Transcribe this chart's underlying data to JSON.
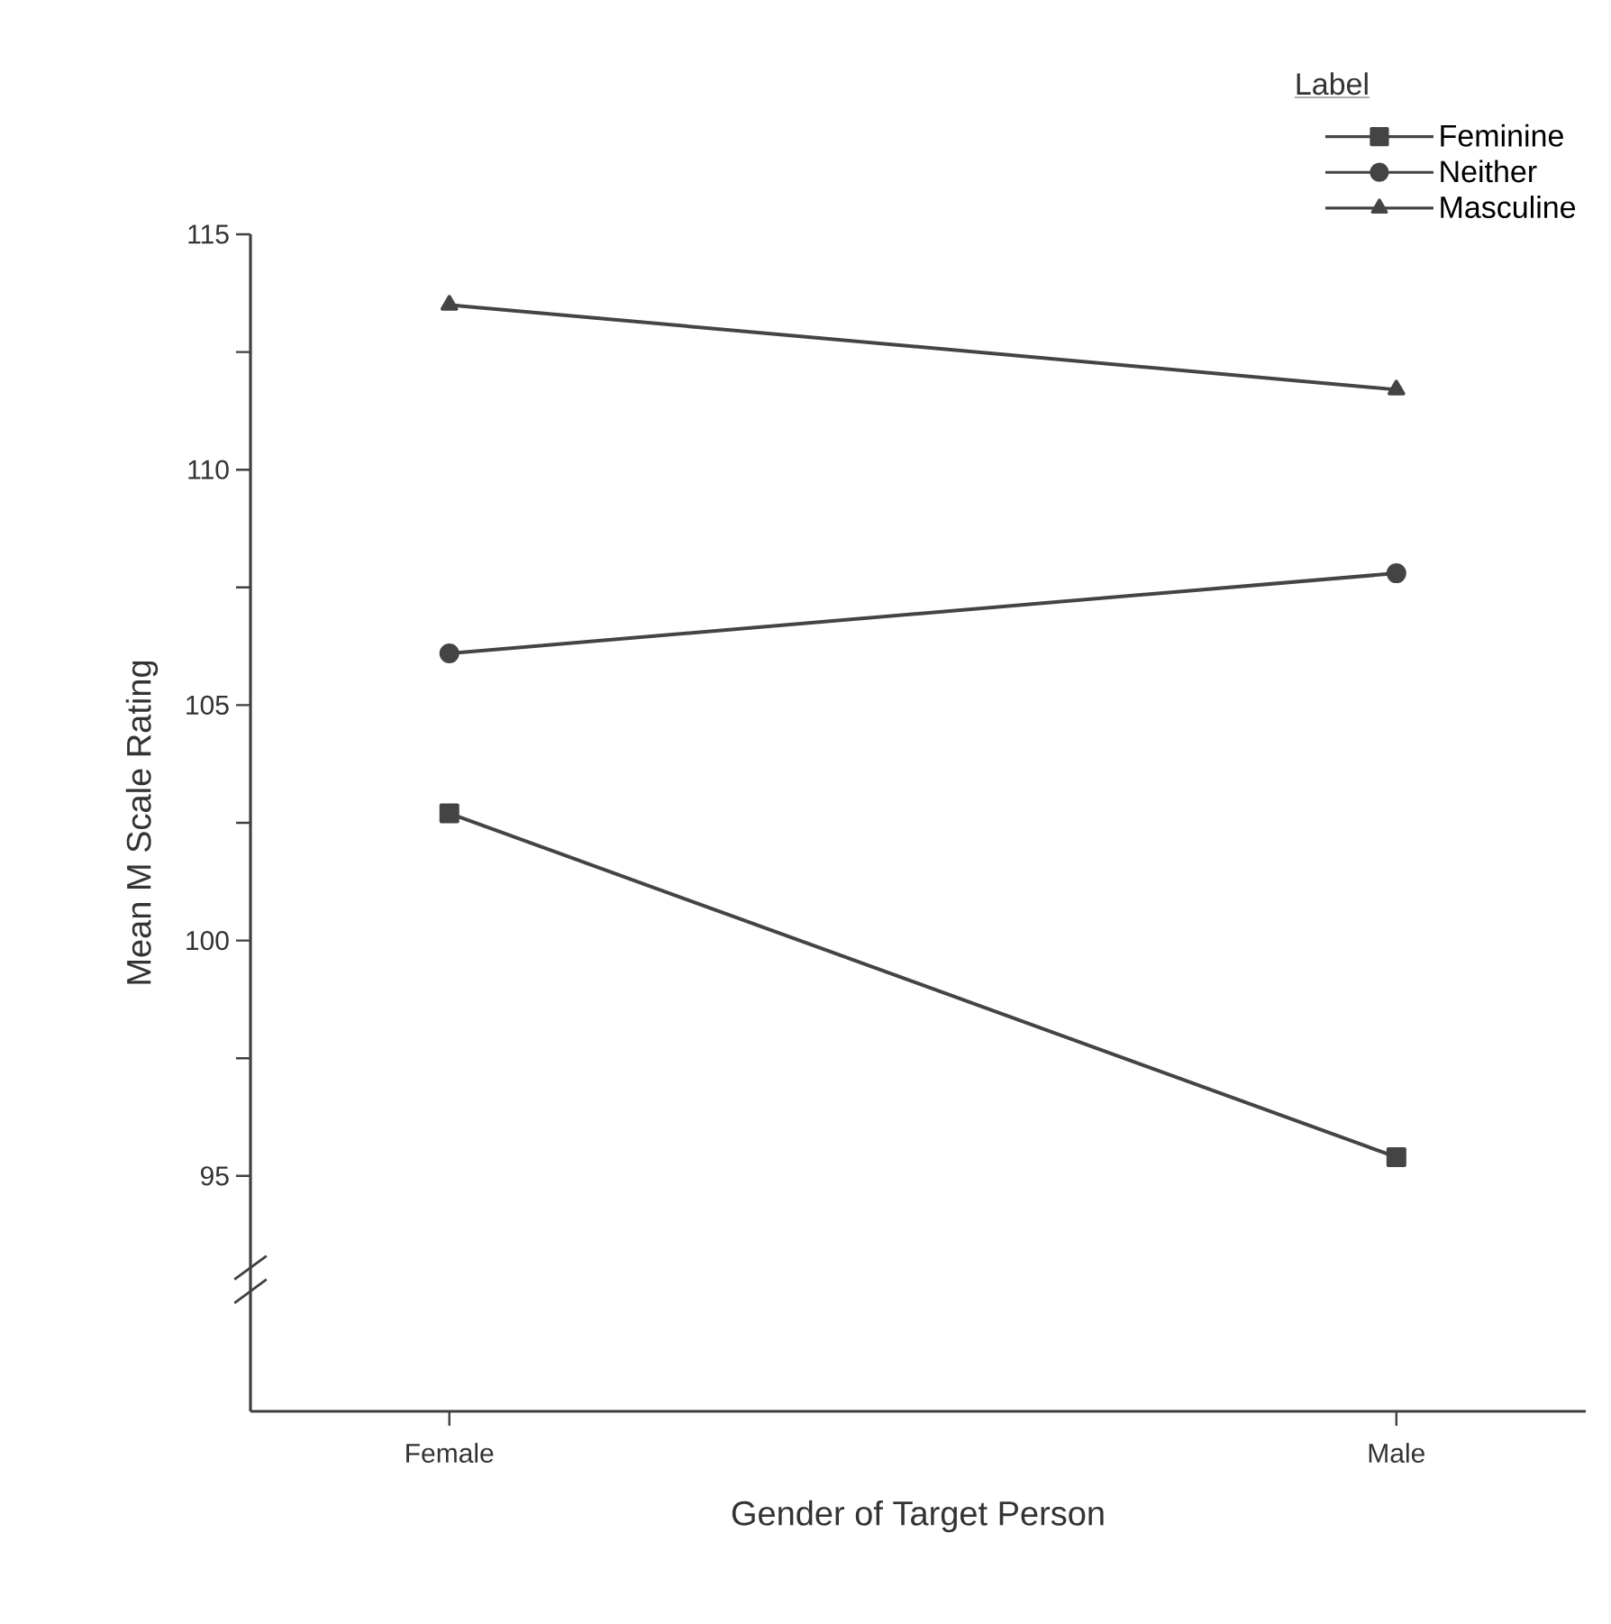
{
  "chart_data": {
    "type": "line",
    "xlabel": "Gender of Target Person",
    "ylabel": "Mean M Scale Rating",
    "legend_title": "Label",
    "categories": [
      "Female",
      "Male"
    ],
    "series": [
      {
        "name": "Feminine",
        "color": "#444444",
        "marker": "square",
        "values": [
          102.7,
          95.4
        ]
      },
      {
        "name": "Neither",
        "color": "#444444",
        "marker": "circle",
        "values": [
          106.1,
          107.8
        ]
      },
      {
        "name": "Masculine",
        "color": "#444444",
        "marker": "triangle",
        "values": [
          113.5,
          111.7
        ]
      }
    ],
    "ylim": [
      90,
      115
    ],
    "yticks": [
      95,
      {
        "value": 97.5,
        "label": null
      },
      100,
      {
        "value": 102.5,
        "label": null
      },
      105,
      {
        "value": 107.5,
        "label": null
      },
      110,
      {
        "value": 112.5,
        "label": null
      },
      115
    ],
    "legend": "top right",
    "grid": false,
    "line_style": "solid"
  }
}
